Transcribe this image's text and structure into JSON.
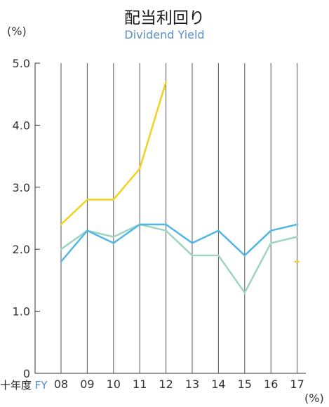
{
  "title": "配当利回り",
  "subtitle": "Dividend Yield",
  "unit_top": "(%)",
  "unit_bottom": "(%)",
  "x_axis_prefix_jp": "十年度",
  "x_axis_prefix_en": "FY",
  "chart_data": {
    "type": "line",
    "categories": [
      "08",
      "09",
      "10",
      "11",
      "12",
      "13",
      "14",
      "15",
      "16",
      "17"
    ],
    "y_ticks": [
      "0",
      "1.0",
      "2.0",
      "3.0",
      "4.0",
      "5.0"
    ],
    "ylim": [
      0,
      5.0
    ],
    "grid": "vertical",
    "series": [
      {
        "color": "#f2d21c",
        "values": [
          2.4,
          2.8,
          2.8,
          3.3,
          4.7,
          null,
          null,
          null,
          null,
          1.8
        ]
      },
      {
        "color": "#9fd4c0",
        "values": [
          2.0,
          2.3,
          2.2,
          2.4,
          2.3,
          1.9,
          1.9,
          1.3,
          2.1,
          2.2
        ]
      },
      {
        "color": "#4fb6e6",
        "values": [
          1.8,
          2.3,
          2.1,
          2.4,
          2.4,
          2.1,
          2.3,
          1.9,
          2.3,
          2.4
        ]
      }
    ]
  }
}
